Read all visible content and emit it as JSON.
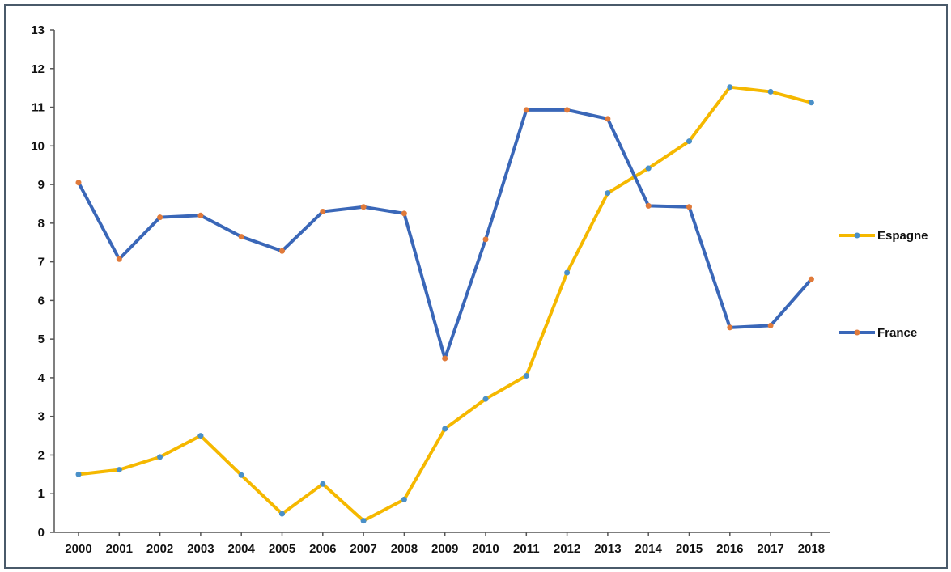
{
  "chart_data": {
    "type": "line",
    "title": "",
    "xlabel": "",
    "ylabel": "",
    "x": [
      "2000",
      "2001",
      "2002",
      "2003",
      "2004",
      "2005",
      "2006",
      "2007",
      "2008",
      "2009",
      "2010",
      "2011",
      "2012",
      "2013",
      "2014",
      "2015",
      "2016",
      "2017",
      "2018"
    ],
    "yticks": [
      "0",
      "1",
      "2",
      "3",
      "4",
      "5",
      "6",
      "7",
      "8",
      "9",
      "10",
      "11",
      "12",
      "13"
    ],
    "ylim": [
      0,
      13
    ],
    "grid": false,
    "legend_position": "right",
    "series": [
      {
        "name": "Espagne",
        "color": "#f5b800",
        "marker_color": "#4a90c8",
        "values": [
          1.5,
          1.62,
          1.95,
          2.5,
          1.48,
          0.48,
          1.25,
          0.3,
          0.85,
          2.68,
          3.45,
          4.05,
          6.72,
          8.78,
          9.42,
          10.12,
          11.52,
          11.4,
          11.12
        ]
      },
      {
        "name": "France",
        "color": "#3a67b8",
        "marker_color": "#e07a3a",
        "values": [
          9.05,
          7.07,
          8.15,
          8.2,
          7.65,
          7.28,
          8.3,
          8.42,
          8.25,
          4.5,
          7.58,
          10.93,
          10.93,
          10.7,
          8.45,
          8.42,
          5.3,
          5.35,
          6.55
        ]
      }
    ]
  }
}
